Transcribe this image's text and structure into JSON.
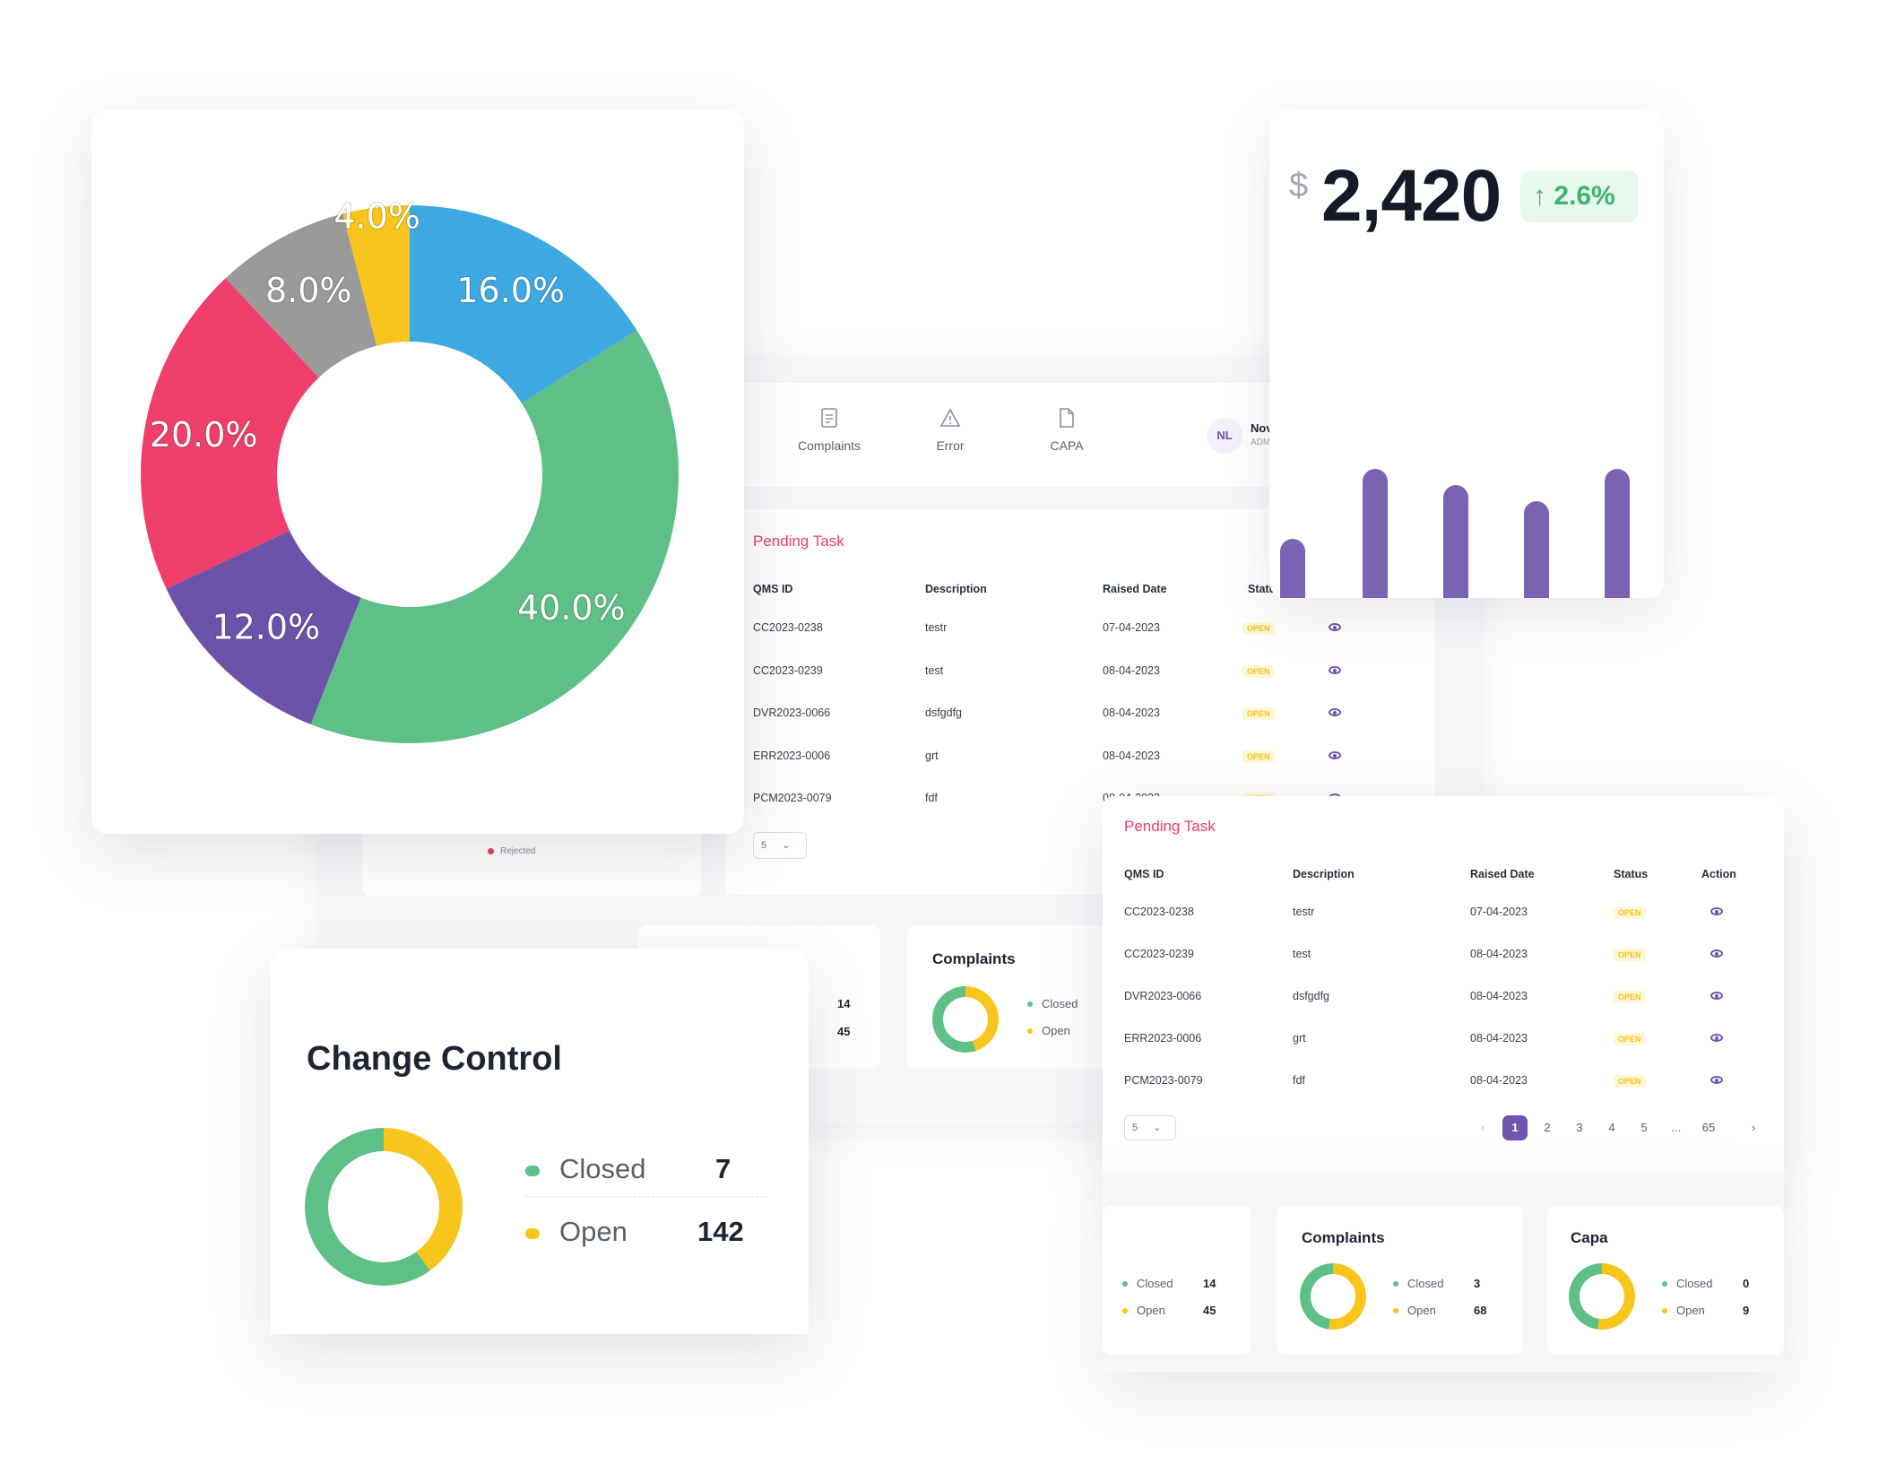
{
  "pie_chart": {
    "labels": [
      "16.0%",
      "40.0%",
      "12.0%",
      "20.0%",
      "8.0%",
      "4.0%"
    ]
  },
  "chart_data": {
    "type": "pie",
    "values": [
      16.0,
      40.0,
      12.0,
      20.0,
      8.0,
      4.0
    ],
    "colors": [
      "#3ea8e2",
      "#5ec086",
      "#6a53a8",
      "#ef3f6a",
      "#9a9a9a",
      "#f8c51c"
    ]
  },
  "kpi": {
    "currency": "$",
    "value": "2,420",
    "change": "2.6%"
  },
  "bars": {
    "color": "#7a63b2",
    "values": [
      0.22,
      0.48,
      0.42,
      0.36,
      0.48
    ]
  },
  "nav": [
    {
      "label": "Complaints",
      "icon": "document-icon"
    },
    {
      "label": "Error",
      "icon": "warning-icon"
    },
    {
      "label": "CAPA",
      "icon": "file-icon"
    }
  ],
  "user": {
    "initials": "NL",
    "name": "Nov",
    "role": "ADM"
  },
  "pending_task": {
    "title": "Pending Task",
    "columns": [
      "QMS ID",
      "Description",
      "Raised Date",
      "Status",
      "Action"
    ],
    "columns_clipped": [
      "QMS ID",
      "Description",
      "Raised Date",
      "Statu"
    ],
    "rows": [
      {
        "id": "CC2023-0238",
        "desc": "testr",
        "date": "07-04-2023",
        "status": "OPEN"
      },
      {
        "id": "CC2023-0239",
        "desc": "test",
        "date": "08-04-2023",
        "status": "OPEN"
      },
      {
        "id": "DVR2023-0066",
        "desc": "dsfgdfg",
        "date": "08-04-2023",
        "status": "OPEN"
      },
      {
        "id": "ERR2023-0006",
        "desc": "grt",
        "date": "08-04-2023",
        "status": "OPEN"
      },
      {
        "id": "PCM2023-0079",
        "desc": "fdf",
        "date": "08-04-2023",
        "status": "OPEN"
      }
    ],
    "page_size": "5",
    "pages": [
      "1",
      "2",
      "3",
      "4",
      "5",
      "...",
      "65"
    ]
  },
  "legend_rejected": "Rejected",
  "change_control": {
    "title": "Change Control",
    "closed_label": "Closed",
    "closed": "7",
    "open_label": "Open",
    "open": "142"
  },
  "deviation_counts": {
    "closed_label": "Closed",
    "closed": "14",
    "open_label": "Open",
    "open": "45"
  },
  "complaints_card": {
    "title": "Complaints",
    "closed_label": "Closed",
    "closed": "3",
    "open_label": "Open",
    "open": "68"
  },
  "capa_card": {
    "title": "Capa",
    "closed_label": "Closed",
    "closed": "0",
    "open_label": "Open",
    "open": "9"
  },
  "colors": {
    "closed": "#5ec086",
    "open": "#f8c51c",
    "accent": "#6d55b0",
    "pending": "#ef3a6a",
    "up": "#3cb56a"
  }
}
